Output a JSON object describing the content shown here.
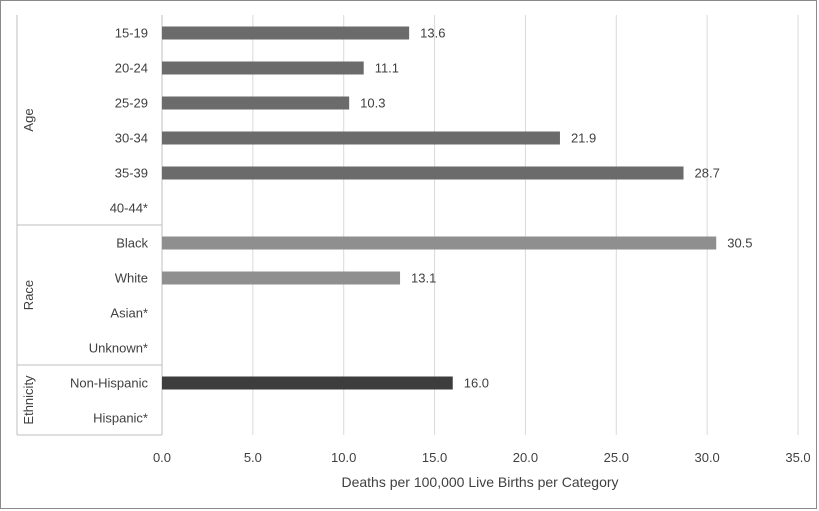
{
  "chart_data": {
    "type": "bar",
    "orientation": "horizontal",
    "xlabel": "Deaths per 100,000 Live Births per Category",
    "xlim": [
      0,
      35
    ],
    "xticks": [
      "0.0",
      "5.0",
      "10.0",
      "15.0",
      "20.0",
      "25.0",
      "30.0",
      "35.0"
    ],
    "grid": true,
    "groups": [
      {
        "label": "Age",
        "color": "#6b6b6b",
        "items": [
          {
            "category": "15-19",
            "value": 13.6,
            "label": "13.6"
          },
          {
            "category": "20-24",
            "value": 11.1,
            "label": "11.1"
          },
          {
            "category": "25-29",
            "value": 10.3,
            "label": "10.3"
          },
          {
            "category": "30-34",
            "value": 21.9,
            "label": "21.9"
          },
          {
            "category": "35-39",
            "value": 28.7,
            "label": "28.7"
          },
          {
            "category": "40-44*",
            "value": null,
            "label": ""
          }
        ]
      },
      {
        "label": "Race",
        "color": "#8f8f8f",
        "items": [
          {
            "category": "Black",
            "value": 30.5,
            "label": "30.5"
          },
          {
            "category": "White",
            "value": 13.1,
            "label": "13.1"
          },
          {
            "category": "Asian*",
            "value": null,
            "label": ""
          },
          {
            "category": "Unknown*",
            "value": null,
            "label": ""
          }
        ]
      },
      {
        "label": "Ethnicity",
        "color": "#3d3d3d",
        "items": [
          {
            "category": "Non-Hispanic",
            "value": 16.0,
            "label": "16.0"
          },
          {
            "category": "Hispanic*",
            "value": null,
            "label": ""
          }
        ]
      }
    ]
  }
}
